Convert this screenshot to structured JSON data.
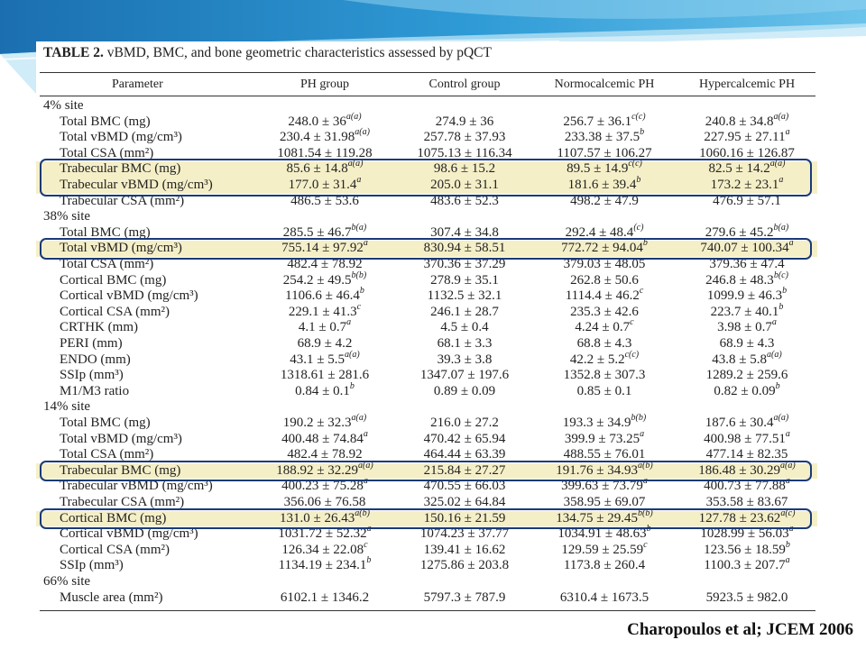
{
  "colors": {
    "banner_dark": "#1b6fb0",
    "banner_light": "#8fd0ef",
    "highlight_fill": "#f5efc8",
    "box_border": "#1a3a78"
  },
  "table": {
    "title_label": "TABLE 2.",
    "title_text": "vBMD, BMC, and bone geometric characteristics assessed by pQCT",
    "headers": [
      "Parameter",
      "PH group",
      "Control group",
      "Normocalcemic PH",
      "Hypercalcemic PH"
    ],
    "rows": [
      {
        "type": "section",
        "label": "4% site"
      },
      {
        "label": "Total BMC (mg)",
        "v": [
          [
            "248.0 ± 36",
            "a(a)"
          ],
          [
            "274.9 ± 36",
            ""
          ],
          [
            "256.7 ± 36.1",
            "c(c)"
          ],
          [
            "240.8 ± 34.8",
            "a(a)"
          ]
        ]
      },
      {
        "label": "Total vBMD (mg/cm³)",
        "v": [
          [
            "230.4 ± 31.98",
            "a(a)"
          ],
          [
            "257.78 ± 37.93",
            ""
          ],
          [
            "233.38 ± 37.5",
            "b"
          ],
          [
            "227.95 ± 27.11",
            "a"
          ]
        ]
      },
      {
        "label": "Total CSA (mm²)",
        "v": [
          [
            "1081.54 ± 119.28",
            ""
          ],
          [
            "1075.13 ± 116.34",
            ""
          ],
          [
            "1107.57 ± 106.27",
            ""
          ],
          [
            "1060.16 ± 126.87",
            ""
          ]
        ]
      },
      {
        "label": "Trabecular BMC (mg)",
        "highlight": true,
        "v": [
          [
            "85.6 ± 14.8",
            "a(a)"
          ],
          [
            "98.6 ± 15.2",
            ""
          ],
          [
            "89.5 ± 14.9",
            "c(c)"
          ],
          [
            "82.5 ± 14.2",
            "a(a)"
          ]
        ]
      },
      {
        "label": "Trabecular vBMD (mg/cm³)",
        "highlight": true,
        "v": [
          [
            "177.0 ± 31.4",
            "a"
          ],
          [
            "205.0 ± 31.1",
            ""
          ],
          [
            "181.6 ± 39.4",
            "b"
          ],
          [
            "173.2 ± 23.1",
            "a"
          ]
        ]
      },
      {
        "label": "Trabecular CSA (mm²)",
        "v": [
          [
            "486.5 ± 53.6",
            ""
          ],
          [
            "483.6 ± 52.3",
            ""
          ],
          [
            "498.2 ± 47.9",
            ""
          ],
          [
            "476.9 ± 57.1",
            ""
          ]
        ]
      },
      {
        "type": "section",
        "label": "38% site"
      },
      {
        "label": "Total BMC (mg)",
        "v": [
          [
            "285.5 ± 46.7",
            "b(a)"
          ],
          [
            "307.4 ± 34.8",
            ""
          ],
          [
            "292.4 ± 48.4",
            "(c)"
          ],
          [
            "279.6 ± 45.2",
            "b(a)"
          ]
        ]
      },
      {
        "label": "Total vBMD (mg/cm³)",
        "highlight": true,
        "v": [
          [
            "755.14 ± 97.92",
            "a"
          ],
          [
            "830.94 ± 58.51",
            ""
          ],
          [
            "772.72 ± 94.04",
            "b"
          ],
          [
            "740.07 ± 100.34",
            "a"
          ]
        ]
      },
      {
        "label": "Total CSA (mm²)",
        "v": [
          [
            "482.4 ± 78.92",
            ""
          ],
          [
            "370.36 ± 37.29",
            ""
          ],
          [
            "379.03 ± 48.05",
            ""
          ],
          [
            "379.36 ± 47.4",
            ""
          ]
        ]
      },
      {
        "label": "Cortical BMC (mg)",
        "v": [
          [
            "254.2 ± 49.5",
            "b(b)"
          ],
          [
            "278.9 ± 35.1",
            ""
          ],
          [
            "262.8 ± 50.6",
            ""
          ],
          [
            "246.8 ± 48.3",
            "b(c)"
          ]
        ]
      },
      {
        "label": "Cortical vBMD (mg/cm³)",
        "v": [
          [
            "1106.6 ± 46.4",
            "b"
          ],
          [
            "1132.5 ± 32.1",
            ""
          ],
          [
            "1114.4 ± 46.2",
            "c"
          ],
          [
            "1099.9 ± 46.3",
            "b"
          ]
        ]
      },
      {
        "label": "Cortical CSA (mm²)",
        "v": [
          [
            "229.1 ± 41.3",
            "c"
          ],
          [
            "246.1 ± 28.7",
            ""
          ],
          [
            "235.3 ± 42.6",
            ""
          ],
          [
            "223.7 ± 40.1",
            "b"
          ]
        ]
      },
      {
        "label": "CRTHK (mm)",
        "v": [
          [
            "4.1 ± 0.7",
            "a"
          ],
          [
            "4.5 ± 0.4",
            ""
          ],
          [
            "4.24 ± 0.7",
            "c"
          ],
          [
            "3.98 ± 0.7",
            "a"
          ]
        ]
      },
      {
        "label": "PERI (mm)",
        "v": [
          [
            "68.9 ± 4.2",
            ""
          ],
          [
            "68.1 ± 3.3",
            ""
          ],
          [
            "68.8 ± 4.3",
            ""
          ],
          [
            "68.9 ± 4.3",
            ""
          ]
        ]
      },
      {
        "label": "ENDO (mm)",
        "v": [
          [
            "43.1 ± 5.5",
            "a(a)"
          ],
          [
            "39.3 ± 3.8",
            ""
          ],
          [
            "42.2 ± 5.2",
            "c(c)"
          ],
          [
            "43.8 ± 5.8",
            "a(a)"
          ]
        ]
      },
      {
        "label": "SSIp (mm³)",
        "v": [
          [
            "1318.61 ± 281.6",
            ""
          ],
          [
            "1347.07 ± 197.6",
            ""
          ],
          [
            "1352.8 ± 307.3",
            ""
          ],
          [
            "1289.2 ± 259.6",
            ""
          ]
        ]
      },
      {
        "label": "M1/M3 ratio",
        "v": [
          [
            "0.84 ± 0.1",
            "b"
          ],
          [
            "0.89 ± 0.09",
            ""
          ],
          [
            "0.85 ± 0.1",
            ""
          ],
          [
            "0.82 ± 0.09",
            "b"
          ]
        ]
      },
      {
        "type": "section",
        "label": "14% site"
      },
      {
        "label": "Total BMC (mg)",
        "v": [
          [
            "190.2 ± 32.3",
            "a(a)"
          ],
          [
            "216.0 ± 27.2",
            ""
          ],
          [
            "193.3 ± 34.9",
            "b(b)"
          ],
          [
            "187.6 ± 30.4",
            "a(a)"
          ]
        ]
      },
      {
        "label": "Total vBMD (mg/cm³)",
        "v": [
          [
            "400.48 ± 74.84",
            "a"
          ],
          [
            "470.42 ± 65.94",
            ""
          ],
          [
            "399.9 ± 73.25",
            "a"
          ],
          [
            "400.98 ± 77.51",
            "a"
          ]
        ]
      },
      {
        "label": "Total CSA (mm²)",
        "v": [
          [
            "482.4 ± 78.92",
            ""
          ],
          [
            "464.44 ± 63.39",
            ""
          ],
          [
            "488.55 ± 76.01",
            ""
          ],
          [
            "477.14 ± 82.35",
            ""
          ]
        ]
      },
      {
        "label": "Trabecular BMC (mg)",
        "highlight": true,
        "v": [
          [
            "188.92 ± 32.29",
            "a(a)"
          ],
          [
            "215.84 ± 27.27",
            ""
          ],
          [
            "191.76 ± 34.93",
            "a(b)"
          ],
          [
            "186.48 ± 30.29",
            "a(a)"
          ]
        ]
      },
      {
        "label": "Trabecular vBMD (mg/cm³)",
        "v": [
          [
            "400.23 ± 75.28",
            "a"
          ],
          [
            "470.55 ± 66.03",
            ""
          ],
          [
            "399.63 ± 73.79",
            "a"
          ],
          [
            "400.73 ± 77.88",
            "a"
          ]
        ]
      },
      {
        "label": "Trabecular CSA (mm²)",
        "v": [
          [
            "356.06 ± 76.58",
            ""
          ],
          [
            "325.02 ± 64.84",
            ""
          ],
          [
            "358.95 ± 69.07",
            ""
          ],
          [
            "353.58 ± 83.67",
            ""
          ]
        ]
      },
      {
        "label": "Cortical BMC (mg)",
        "highlight": true,
        "v": [
          [
            "131.0 ± 26.43",
            "a(b)"
          ],
          [
            "150.16 ± 21.59",
            ""
          ],
          [
            "134.75 ± 29.45",
            "b(b)"
          ],
          [
            "127.78 ± 23.62",
            "a(c)"
          ]
        ]
      },
      {
        "label": "Cortical vBMD (mg/cm³)",
        "v": [
          [
            "1031.72 ± 52.32",
            "a"
          ],
          [
            "1074.23 ± 37.77",
            ""
          ],
          [
            "1034.91 ± 48.63",
            "b"
          ],
          [
            "1028.99 ± 56.03",
            "a"
          ]
        ]
      },
      {
        "label": "Cortical CSA (mm²)",
        "v": [
          [
            "126.34 ± 22.08",
            "c"
          ],
          [
            "139.41 ± 16.62",
            ""
          ],
          [
            "129.59 ± 25.59",
            "c"
          ],
          [
            "123.56 ± 18.59",
            "b"
          ]
        ]
      },
      {
        "label": "SSIp (mm³)",
        "v": [
          [
            "1134.19 ± 234.1",
            "b"
          ],
          [
            "1275.86 ± 203.8",
            ""
          ],
          [
            "1173.8 ± 260.4",
            ""
          ],
          [
            "1100.3 ± 207.7",
            "a"
          ]
        ]
      },
      {
        "type": "section",
        "label": "66% site"
      },
      {
        "label": "Muscle area (mm²)",
        "v": [
          [
            "6102.1 ± 1346.2",
            ""
          ],
          [
            "5797.3 ± 787.9",
            ""
          ],
          [
            "6310.4 ± 1673.5",
            ""
          ],
          [
            "5923.5 ± 982.0",
            ""
          ]
        ]
      }
    ]
  },
  "citation": "Charopoulos et al; JCEM 2006"
}
